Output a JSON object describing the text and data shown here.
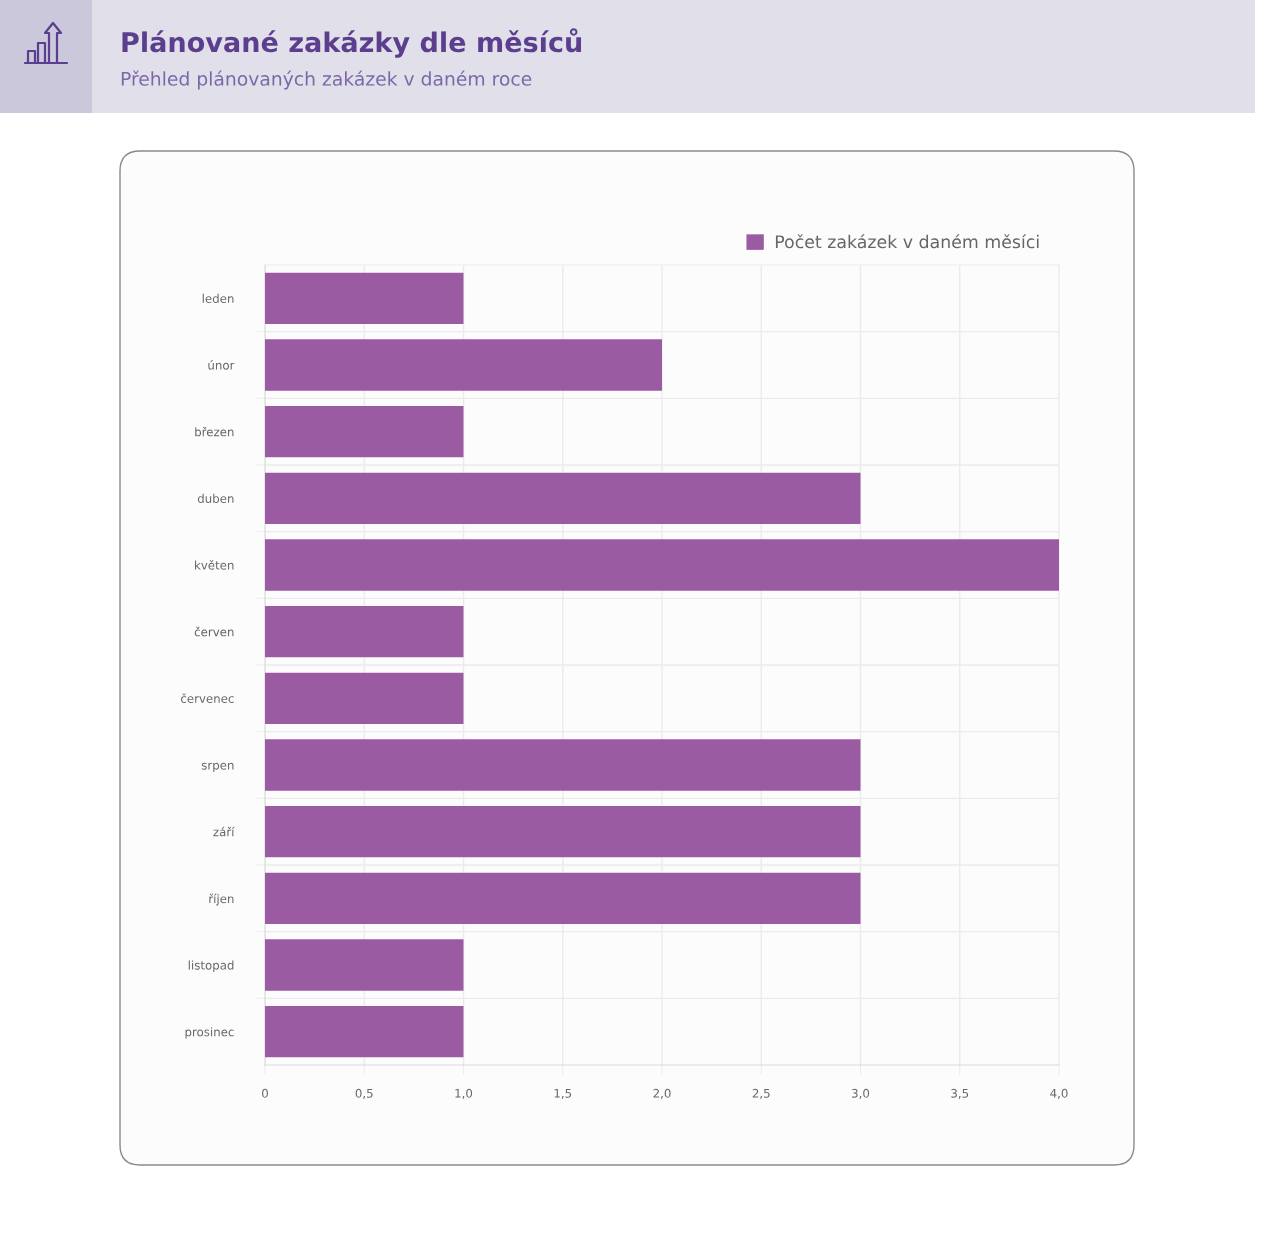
{
  "chart_data": {
    "type": "bar",
    "orientation": "horizontal",
    "title": "Plánované zakázky dle měsíců",
    "subtitle": "Přehled plánovaných zakázek v daném roce",
    "categories": [
      "leden",
      "únor",
      "březen",
      "duben",
      "květen",
      "červen",
      "červenec",
      "srpen",
      "září",
      "říjen",
      "listopad",
      "prosinec"
    ],
    "series": [
      {
        "name": "Počet zakázek v daném měsíci",
        "color": "#9b5ba3",
        "values": [
          1,
          2,
          1,
          3,
          4,
          1,
          1,
          3,
          3,
          3,
          1,
          1
        ]
      }
    ],
    "xlim": [
      0,
      4
    ],
    "xticks": [
      0,
      {
        "value": 0.5,
        "label": "0,5"
      },
      {
        "value": 1,
        "label": "1,0"
      },
      {
        "value": 1.5,
        "label": "1,5"
      },
      {
        "value": 2,
        "label": "2,0"
      },
      {
        "value": 2.5,
        "label": "2,5"
      },
      {
        "value": 3,
        "label": "3,0"
      },
      {
        "value": 3.5,
        "label": "3,5"
      },
      {
        "value": 4,
        "label": "4,0"
      }
    ],
    "grid": true,
    "legend": "top right"
  }
}
